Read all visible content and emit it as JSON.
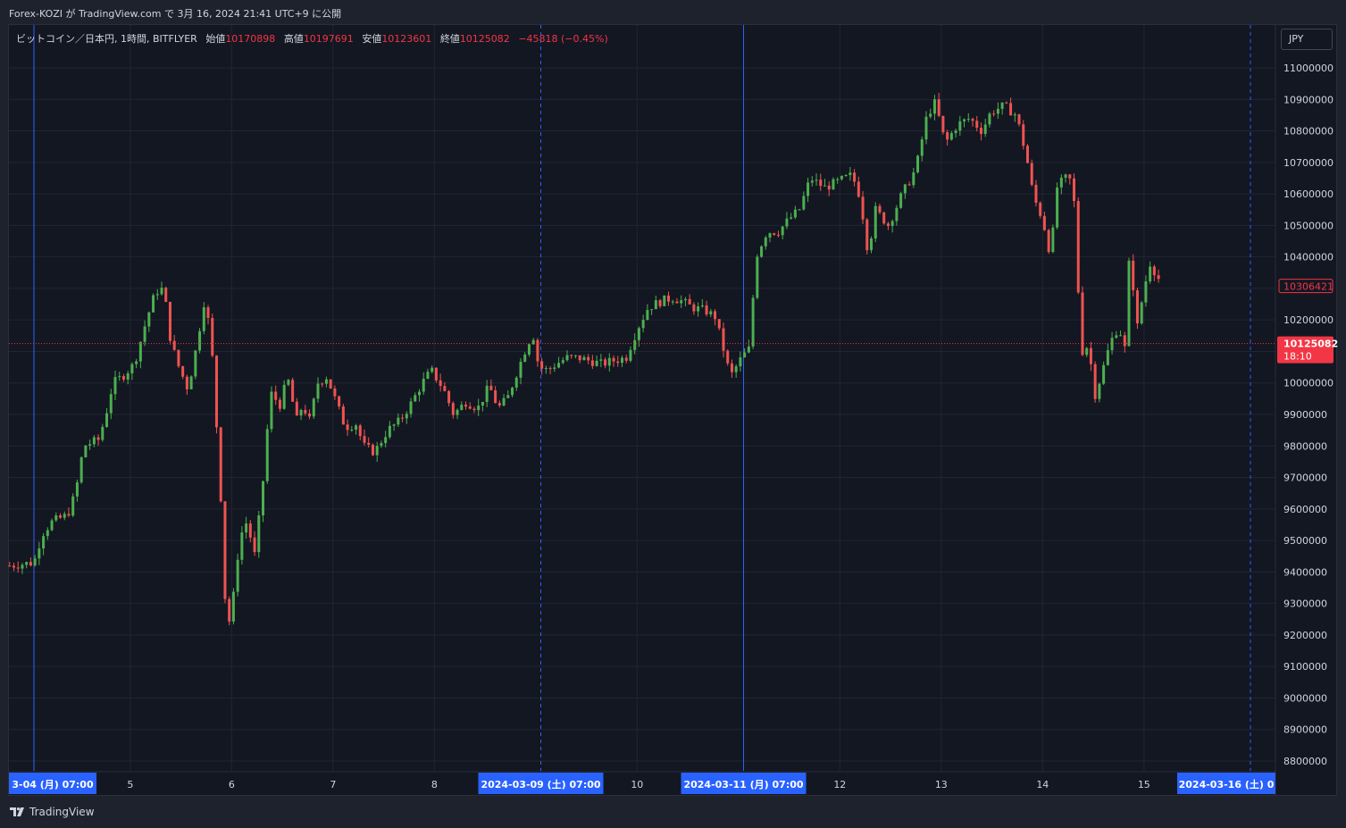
{
  "header": {
    "text": "Forex-KOZI が TradingView.com で 3月 16, 2024 21:41 UTC+9 に公開"
  },
  "legend": {
    "symbol": "ビットコイン／日本円, 1時間, BITFLYER",
    "open_label": "始値",
    "open_value": "10170898",
    "high_label": "高値",
    "high_value": "10197691",
    "low_label": "安値",
    "low_value": "10123601",
    "close_label": "終値",
    "close_value": "10125082",
    "change": "−45818 (−0.45%)"
  },
  "currency": "JPY",
  "footer": {
    "brand": "TradingView"
  },
  "colors": {
    "background": "#131722",
    "grid": "#222632",
    "up": "#26a69a",
    "up_candle": "#4caf50",
    "down": "#f23645",
    "down_candle": "#ef5350",
    "axis_text": "#d1d4dc",
    "marker": "#2962ff",
    "price_line": "#f23645"
  },
  "chart_data": {
    "type": "candlestick",
    "title": "ビットコイン／日本円, 1時間, BITFLYER",
    "currency": "JPY",
    "y_ticks": [
      11000000,
      10900000,
      10800000,
      10700000,
      10600000,
      10500000,
      10400000,
      10300000,
      10200000,
      10100000,
      10000000,
      9900000,
      9800000,
      9700000,
      9600000,
      9500000,
      9400000,
      9300000,
      9200000,
      9100000,
      9000000,
      8900000,
      8800000
    ],
    "ylim": [
      8770000,
      11060000
    ],
    "x_labels": [
      {
        "text": "5",
        "x": 6.24
      },
      {
        "text": "6",
        "x": 7.24
      },
      {
        "text": "7",
        "x": 8.24
      },
      {
        "text": "8",
        "x": 9.24
      },
      {
        "text": "10",
        "x": 11.24
      },
      {
        "text": "12",
        "x": 13.24
      },
      {
        "text": "13",
        "x": 14.24
      },
      {
        "text": "14",
        "x": 15.24
      },
      {
        "text": "15",
        "x": 16.24
      }
    ],
    "x_highlights": [
      {
        "text": "3-04 (月)   07:00",
        "x": 5.29,
        "align": "left"
      },
      {
        "text": "2024-03-09 (土)   07:00",
        "x": 10.29,
        "align": "center"
      },
      {
        "text": "2024-03-11 (月)   07:00",
        "x": 12.29,
        "align": "center"
      },
      {
        "text": "2024-03-16 (土)   0",
        "x": 17.29,
        "align": "right"
      }
    ],
    "markers": [
      {
        "x": 5.29,
        "style": "solid"
      },
      {
        "x": 10.29,
        "style": "dashed"
      },
      {
        "x": 12.29,
        "style": "solid"
      },
      {
        "x": 17.29,
        "style": "dashed"
      }
    ],
    "last_price": {
      "value": 10125082,
      "label": "10125082",
      "countdown": "18:10"
    },
    "marked_price": {
      "value": 10306421,
      "label": "10306421"
    },
    "series": [
      {
        "name": "ビットコイン／日本円",
        "points": [
          {
            "d": 5.05,
            "v": 9420000
          },
          {
            "d": 5.29,
            "v": 9430000
          },
          {
            "d": 5.37,
            "v": 9520000
          },
          {
            "d": 5.47,
            "v": 9560000
          },
          {
            "d": 5.62,
            "v": 9580000
          },
          {
            "d": 5.7,
            "v": 9650000
          },
          {
            "d": 5.78,
            "v": 9800000
          },
          {
            "d": 5.93,
            "v": 9820000
          },
          {
            "d": 6.0,
            "v": 9900000
          },
          {
            "d": 6.07,
            "v": 10000000
          },
          {
            "d": 6.16,
            "v": 10020000
          },
          {
            "d": 6.28,
            "v": 10060000
          },
          {
            "d": 6.4,
            "v": 10200000
          },
          {
            "d": 6.49,
            "v": 10290000
          },
          {
            "d": 6.57,
            "v": 10300000
          },
          {
            "d": 6.64,
            "v": 10130000
          },
          {
            "d": 6.72,
            "v": 10050000
          },
          {
            "d": 6.81,
            "v": 9980000
          },
          {
            "d": 6.89,
            "v": 10110000
          },
          {
            "d": 6.98,
            "v": 10280000
          },
          {
            "d": 7.05,
            "v": 10080000
          },
          {
            "d": 7.1,
            "v": 9820000
          },
          {
            "d": 7.14,
            "v": 9600000
          },
          {
            "d": 7.19,
            "v": 9200000
          },
          {
            "d": 7.25,
            "v": 9300000
          },
          {
            "d": 7.32,
            "v": 9510000
          },
          {
            "d": 7.39,
            "v": 9560000
          },
          {
            "d": 7.47,
            "v": 9450000
          },
          {
            "d": 7.56,
            "v": 9720000
          },
          {
            "d": 7.62,
            "v": 9970000
          },
          {
            "d": 7.72,
            "v": 9930000
          },
          {
            "d": 7.79,
            "v": 10020000
          },
          {
            "d": 7.88,
            "v": 9880000
          },
          {
            "d": 7.94,
            "v": 9930000
          },
          {
            "d": 8.01,
            "v": 9880000
          },
          {
            "d": 8.09,
            "v": 10000000
          },
          {
            "d": 8.18,
            "v": 10020000
          },
          {
            "d": 8.27,
            "v": 9940000
          },
          {
            "d": 8.36,
            "v": 9860000
          },
          {
            "d": 8.47,
            "v": 9870000
          },
          {
            "d": 8.54,
            "v": 9800000
          },
          {
            "d": 8.65,
            "v": 9780000
          },
          {
            "d": 8.78,
            "v": 9850000
          },
          {
            "d": 8.9,
            "v": 9880000
          },
          {
            "d": 9.02,
            "v": 9940000
          },
          {
            "d": 9.12,
            "v": 10000000
          },
          {
            "d": 9.21,
            "v": 10040000
          },
          {
            "d": 9.33,
            "v": 9980000
          },
          {
            "d": 9.43,
            "v": 9900000
          },
          {
            "d": 9.55,
            "v": 9940000
          },
          {
            "d": 9.67,
            "v": 9920000
          },
          {
            "d": 9.78,
            "v": 9990000
          },
          {
            "d": 9.87,
            "v": 9920000
          },
          {
            "d": 9.96,
            "v": 9950000
          },
          {
            "d": 10.05,
            "v": 10030000
          },
          {
            "d": 10.13,
            "v": 10100000
          },
          {
            "d": 10.21,
            "v": 10160000
          },
          {
            "d": 10.27,
            "v": 10050000
          },
          {
            "d": 10.36,
            "v": 10040000
          },
          {
            "d": 10.44,
            "v": 10060000
          },
          {
            "d": 10.55,
            "v": 10080000
          },
          {
            "d": 10.66,
            "v": 10080000
          },
          {
            "d": 10.78,
            "v": 10070000
          },
          {
            "d": 10.89,
            "v": 10060000
          },
          {
            "d": 11.0,
            "v": 10070000
          },
          {
            "d": 11.13,
            "v": 10080000
          },
          {
            "d": 11.24,
            "v": 10170000
          },
          {
            "d": 11.35,
            "v": 10240000
          },
          {
            "d": 11.48,
            "v": 10260000
          },
          {
            "d": 11.59,
            "v": 10270000
          },
          {
            "d": 11.68,
            "v": 10260000
          },
          {
            "d": 11.78,
            "v": 10240000
          },
          {
            "d": 11.91,
            "v": 10230000
          },
          {
            "d": 12.01,
            "v": 10210000
          },
          {
            "d": 12.09,
            "v": 10110000
          },
          {
            "d": 12.16,
            "v": 10020000
          },
          {
            "d": 12.27,
            "v": 10080000
          },
          {
            "d": 12.35,
            "v": 10110000
          },
          {
            "d": 12.41,
            "v": 10400000
          },
          {
            "d": 12.52,
            "v": 10480000
          },
          {
            "d": 12.63,
            "v": 10480000
          },
          {
            "d": 12.74,
            "v": 10520000
          },
          {
            "d": 12.84,
            "v": 10550000
          },
          {
            "d": 12.95,
            "v": 10650000
          },
          {
            "d": 13.09,
            "v": 10620000
          },
          {
            "d": 13.23,
            "v": 10640000
          },
          {
            "d": 13.36,
            "v": 10660000
          },
          {
            "d": 13.44,
            "v": 10590000
          },
          {
            "d": 13.52,
            "v": 10410000
          },
          {
            "d": 13.59,
            "v": 10550000
          },
          {
            "d": 13.72,
            "v": 10500000
          },
          {
            "d": 13.84,
            "v": 10590000
          },
          {
            "d": 13.99,
            "v": 10680000
          },
          {
            "d": 14.1,
            "v": 10850000
          },
          {
            "d": 14.18,
            "v": 10890000
          },
          {
            "d": 14.28,
            "v": 10760000
          },
          {
            "d": 14.4,
            "v": 10820000
          },
          {
            "d": 14.52,
            "v": 10840000
          },
          {
            "d": 14.64,
            "v": 10800000
          },
          {
            "d": 14.73,
            "v": 10860000
          },
          {
            "d": 14.86,
            "v": 10880000
          },
          {
            "d": 14.98,
            "v": 10850000
          },
          {
            "d": 15.08,
            "v": 10720000
          },
          {
            "d": 15.15,
            "v": 10590000
          },
          {
            "d": 15.24,
            "v": 10520000
          },
          {
            "d": 15.32,
            "v": 10400000
          },
          {
            "d": 15.38,
            "v": 10620000
          },
          {
            "d": 15.46,
            "v": 10650000
          },
          {
            "d": 15.54,
            "v": 10640000
          },
          {
            "d": 15.59,
            "v": 10300000
          },
          {
            "d": 15.63,
            "v": 10100000
          },
          {
            "d": 15.69,
            "v": 10120000
          },
          {
            "d": 15.76,
            "v": 9960000
          },
          {
            "d": 15.84,
            "v": 10050000
          },
          {
            "d": 15.91,
            "v": 10130000
          },
          {
            "d": 15.99,
            "v": 10180000
          },
          {
            "d": 16.05,
            "v": 10110000
          },
          {
            "d": 16.1,
            "v": 10430000
          },
          {
            "d": 16.17,
            "v": 10170000
          },
          {
            "d": 16.24,
            "v": 10300000
          },
          {
            "d": 16.3,
            "v": 10380000
          },
          {
            "d": 16.37,
            "v": 10340000
          },
          {
            "d": 16.42,
            "v": 10306421
          }
        ]
      }
    ]
  }
}
